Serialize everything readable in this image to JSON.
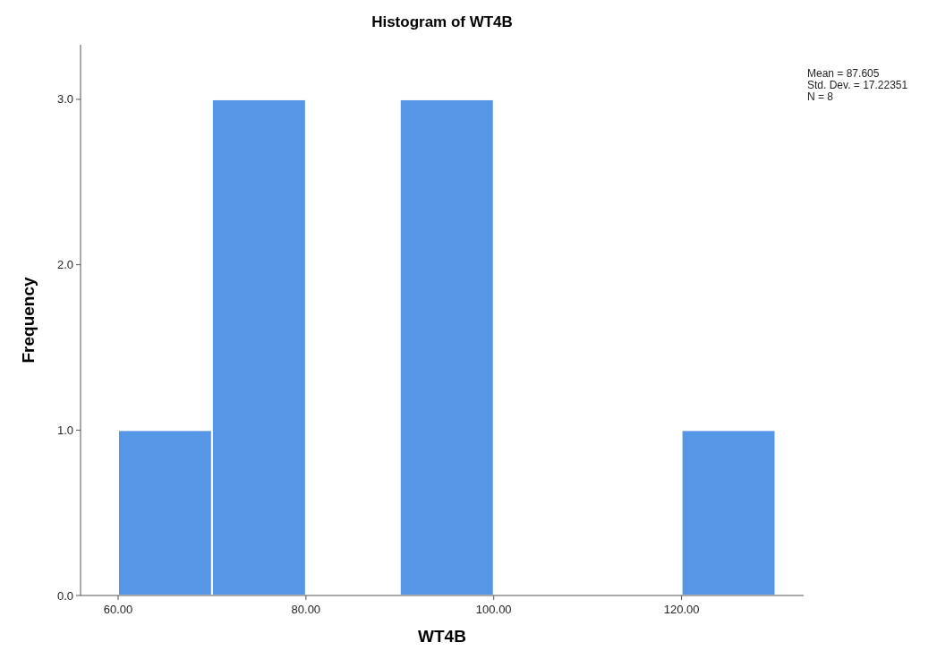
{
  "chart_data": {
    "type": "histogram",
    "title": "Histogram of WT4B",
    "xlabel": "WT4B",
    "ylabel": "Frequency",
    "bins": [
      60,
      70,
      80,
      90,
      100,
      110,
      120,
      130
    ],
    "values": [
      1,
      3,
      0,
      3,
      0,
      0,
      1
    ],
    "color": "#5596e6",
    "xlim": [
      56,
      133
    ],
    "xticks": [
      {
        "value": 60,
        "label": "60.00"
      },
      {
        "value": 80,
        "label": "80.00"
      },
      {
        "value": 100,
        "label": "100.00"
      },
      {
        "value": 120,
        "label": "120.00"
      }
    ],
    "ylim": [
      0,
      3.33
    ],
    "yticks": [
      {
        "value": 0,
        "label": "0.0"
      },
      {
        "value": 1,
        "label": "1.0"
      },
      {
        "value": 2,
        "label": "2.0"
      },
      {
        "value": 3,
        "label": "3.0"
      }
    ],
    "annotations": [
      "Mean = 87.605",
      "Std. Dev. = 17.22351",
      "N = 8"
    ]
  }
}
